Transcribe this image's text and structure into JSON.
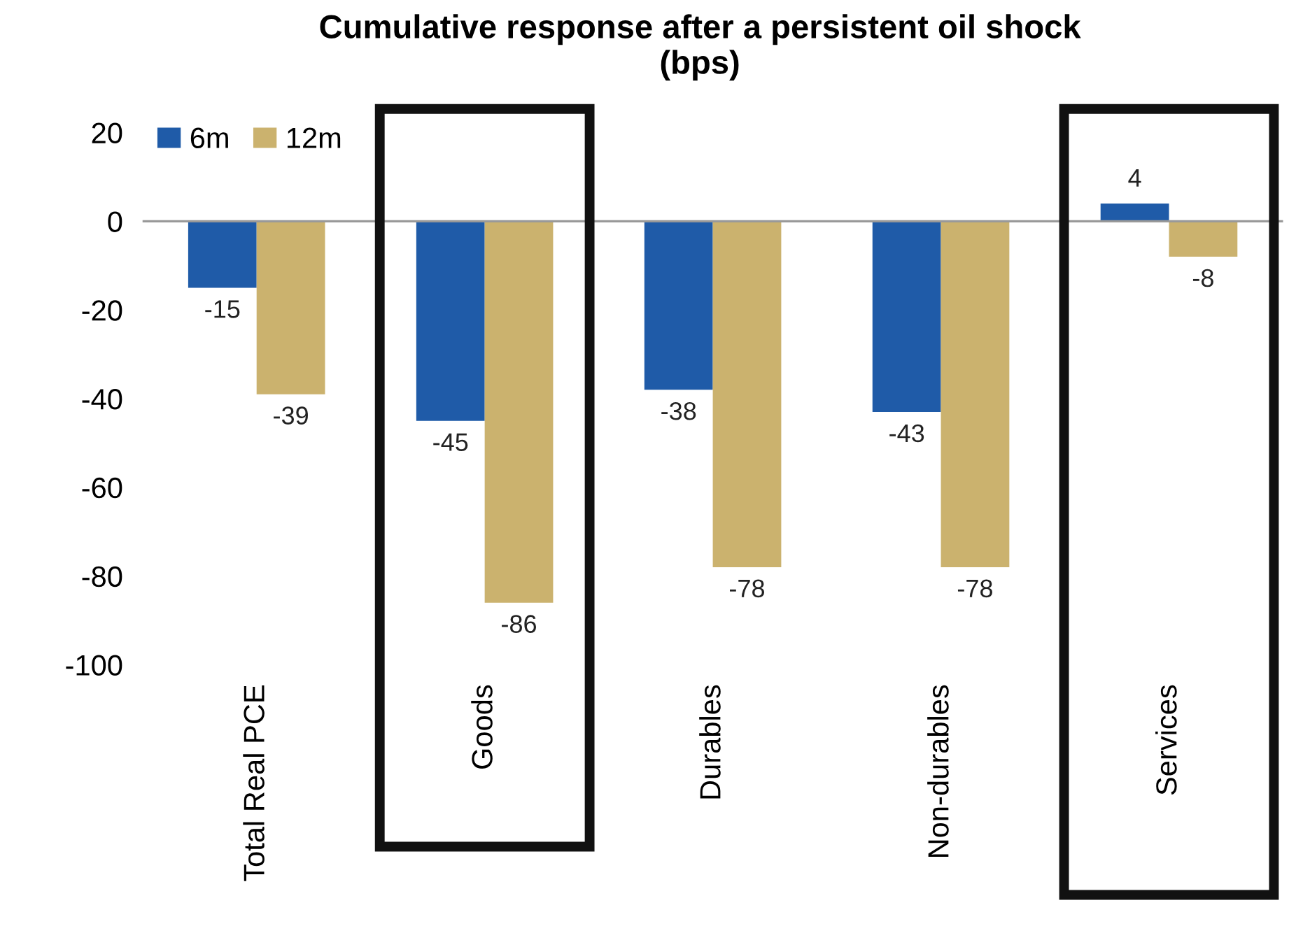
{
  "chart_data": {
    "type": "bar",
    "title": "Cumulative response after a persistent oil shock\n(bps)",
    "categories": [
      "Total Real PCE",
      "Goods",
      "Durables",
      "Non-durables",
      "Services"
    ],
    "series": [
      {
        "name": "6m",
        "color": "#1f5ba8",
        "values": [
          -15,
          -45,
          -38,
          -43,
          4
        ]
      },
      {
        "name": "12m",
        "color": "#cbb26e",
        "values": [
          -39,
          -86,
          -78,
          -78,
          -8
        ]
      }
    ],
    "ylim": [
      -100,
      20
    ],
    "yticks": [
      -100,
      -80,
      -60,
      -40,
      -20,
      0,
      20
    ],
    "ref_lines": [
      {
        "axis": "y",
        "value": 0,
        "color": "#999999"
      }
    ],
    "data_labels": true,
    "legend": "top left"
  }
}
